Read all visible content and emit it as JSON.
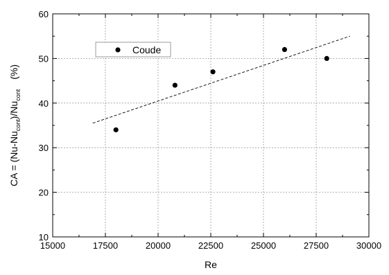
{
  "chart_data": {
    "type": "scatter",
    "title": "",
    "xlabel": "Re",
    "ylabel": "CA = (Nu-Nu",
    "ylabel_sub1": "cont",
    "ylabel_mid": ")/Nu",
    "ylabel_sub2": "cont",
    "ylabel_unit": "(%)",
    "xlim": [
      15000,
      30000
    ],
    "ylim": [
      10,
      60
    ],
    "xticks": [
      15000,
      17500,
      20000,
      22500,
      25000,
      27500,
      30000
    ],
    "yticks": [
      10,
      20,
      30,
      40,
      50,
      60
    ],
    "grid": true,
    "legend_position": "top-left",
    "series": [
      {
        "name": "Coude",
        "marker": "filled-circle",
        "x": [
          18000,
          20800,
          22600,
          26000,
          28000
        ],
        "y": [
          34,
          44,
          47,
          52,
          50
        ]
      }
    ],
    "trendline": {
      "style": "dashed",
      "x": [
        16900,
        29100
      ],
      "y": [
        35.5,
        55
      ]
    }
  }
}
